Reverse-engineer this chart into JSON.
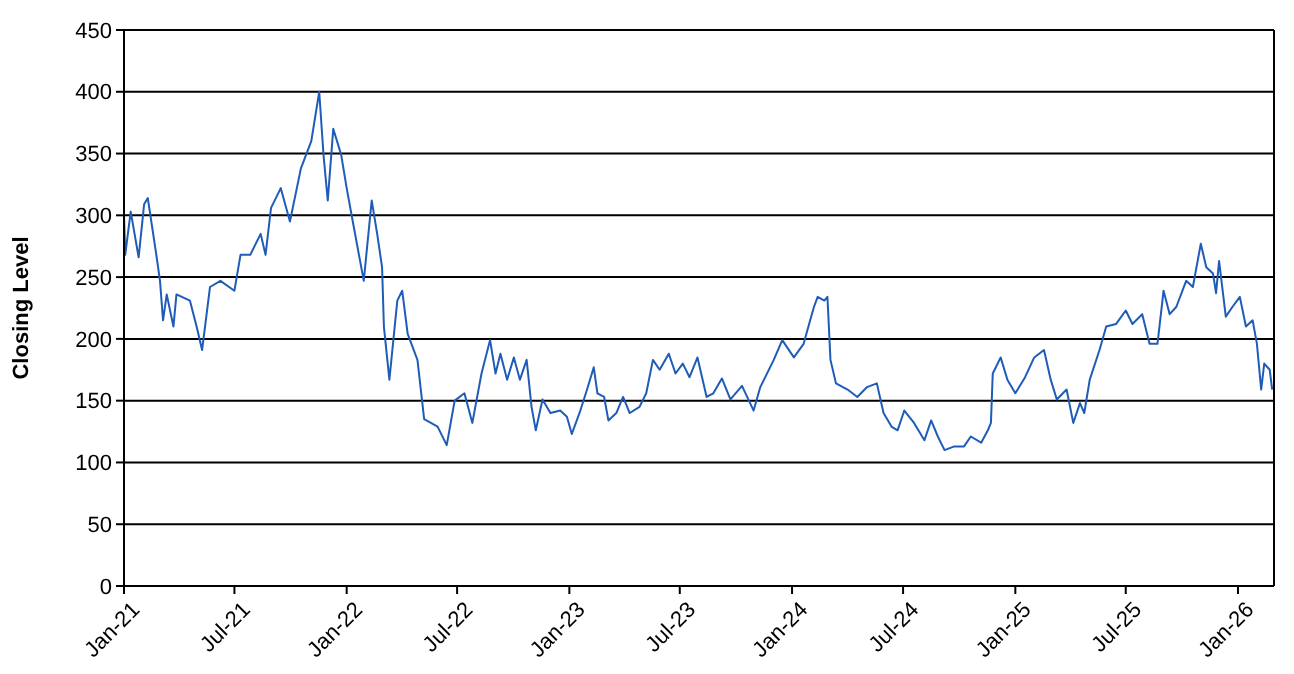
{
  "chart_data": {
    "type": "line",
    "ylabel": "Closing Level",
    "ylim": [
      0,
      450
    ],
    "yticks": [
      0,
      50,
      100,
      150,
      200,
      250,
      300,
      350,
      400,
      450
    ],
    "grid": "y",
    "marker": "none",
    "line_style": "solid",
    "xlim": [
      "2021-01-01",
      "2026-03-01"
    ],
    "xticks": [
      {
        "value": "2021-01-01",
        "label": "Jan-21"
      },
      {
        "value": "2021-07-01",
        "label": "Jul-21"
      },
      {
        "value": "2022-01-01",
        "label": "Jan-22"
      },
      {
        "value": "2022-07-01",
        "label": "Jul-22"
      },
      {
        "value": "2023-01-01",
        "label": "Jan-23"
      },
      {
        "value": "2023-07-01",
        "label": "Jul-23"
      },
      {
        "value": "2024-01-01",
        "label": "Jan-24"
      },
      {
        "value": "2024-07-01",
        "label": "Jul-24"
      },
      {
        "value": "2025-01-01",
        "label": "Jan-25"
      },
      {
        "value": "2025-07-01",
        "label": "Jul-25"
      },
      {
        "value": "2026-01-01",
        "label": "Jan-26"
      }
    ],
    "x": [
      "2021-01-01",
      "2021-01-03",
      "2021-01-12",
      "2021-01-25",
      "2021-02-03",
      "2021-02-09",
      "2021-02-23",
      "2021-03-01",
      "2021-03-06",
      "2021-03-12",
      "2021-03-23",
      "2021-03-28",
      "2021-04-19",
      "2021-04-30",
      "2021-05-09",
      "2021-05-22",
      "2021-06-08",
      "2021-07-01",
      "2021-07-11",
      "2021-07-27",
      "2021-08-13",
      "2021-08-21",
      "2021-08-30",
      "2021-09-15",
      "2021-09-30",
      "2021-10-18",
      "2021-11-04",
      "2021-11-17",
      "2021-11-24",
      "2021-12-01",
      "2021-12-10",
      "2021-12-23",
      "2022-01-01",
      "2022-01-11",
      "2022-01-29",
      "2022-02-11",
      "2022-02-20",
      "2022-02-28",
      "2022-03-03",
      "2022-03-12",
      "2022-03-25",
      "2022-04-02",
      "2022-04-11",
      "2022-04-27",
      "2022-05-08",
      "2022-05-30",
      "2022-06-14",
      "2022-06-27",
      "2022-07-13",
      "2022-07-26",
      "2022-08-10",
      "2022-08-24",
      "2022-09-02",
      "2022-09-10",
      "2022-09-21",
      "2022-10-02",
      "2022-10-12",
      "2022-10-23",
      "2022-10-31",
      "2022-11-07",
      "2022-11-18",
      "2022-12-01",
      "2022-12-17",
      "2022-12-28",
      "2023-01-05",
      "2023-01-19",
      "2023-01-30",
      "2023-02-10",
      "2023-02-16",
      "2023-02-27",
      "2023-03-06",
      "2023-03-19",
      "2023-03-30",
      "2023-04-10",
      "2023-04-26",
      "2023-05-07",
      "2023-05-18",
      "2023-05-29",
      "2023-06-13",
      "2023-06-24",
      "2023-07-06",
      "2023-07-17",
      "2023-07-30",
      "2023-08-14",
      "2023-08-25",
      "2023-09-08",
      "2023-09-22",
      "2023-10-11",
      "2023-10-30",
      "2023-11-10",
      "2023-12-02",
      "2023-12-16",
      "2024-01-04",
      "2024-01-20",
      "2024-01-29",
      "2024-02-06",
      "2024-02-12",
      "2024-02-23",
      "2024-02-28",
      "2024-03-04",
      "2024-03-13",
      "2024-04-01",
      "2024-04-17",
      "2024-05-03",
      "2024-05-19",
      "2024-05-30",
      "2024-06-12",
      "2024-06-22",
      "2024-07-03",
      "2024-07-19",
      "2024-08-05",
      "2024-08-16",
      "2024-08-27",
      "2024-09-07",
      "2024-09-23",
      "2024-10-09",
      "2024-10-20",
      "2024-11-06",
      "2024-11-17",
      "2024-11-22",
      "2024-11-25",
      "2024-12-08",
      "2024-12-19",
      "2025-01-01",
      "2025-01-17",
      "2025-02-01",
      "2025-02-17",
      "2025-02-28",
      "2025-03-10",
      "2025-03-26",
      "2025-04-06",
      "2025-04-17",
      "2025-04-24",
      "2025-05-03",
      "2025-05-19",
      "2025-05-30",
      "2025-06-15",
      "2025-07-01",
      "2025-07-12",
      "2025-07-28",
      "2025-08-09",
      "2025-08-22",
      "2025-09-01",
      "2025-09-11",
      "2025-09-22",
      "2025-10-08",
      "2025-10-19",
      "2025-11-01",
      "2025-11-10",
      "2025-11-21",
      "2025-11-26",
      "2025-12-01",
      "2025-12-12",
      "2025-12-23",
      "2026-01-04",
      "2026-01-14",
      "2026-01-25",
      "2026-02-01",
      "2026-02-08",
      "2026-02-13",
      "2026-02-22",
      "2026-02-26"
    ],
    "series": [
      {
        "color": "#1f5cb8",
        "values": [
          300,
          268,
          303,
          266,
          309,
          314,
          268,
          247,
          215,
          236,
          210,
          236,
          231,
          210,
          191,
          242,
          247,
          239,
          268,
          268,
          285,
          268,
          306,
          322,
          295,
          338,
          360,
          400,
          349,
          312,
          370,
          349,
          322,
          295,
          247,
          312,
          285,
          258,
          210,
          167,
          231,
          239,
          204,
          183,
          135,
          129,
          114,
          150,
          156,
          132,
          172,
          199,
          172,
          188,
          167,
          185,
          167,
          183,
          145,
          126,
          151,
          140,
          142,
          137,
          123,
          142,
          159,
          177,
          156,
          153,
          134,
          140,
          153,
          140,
          145,
          156,
          183,
          175,
          188,
          172,
          180,
          169,
          185,
          153,
          156,
          168,
          151,
          162,
          142,
          161,
          183,
          199,
          185,
          196,
          212,
          226,
          234,
          231,
          234,
          183,
          164,
          159,
          153,
          161,
          164,
          140,
          129,
          126,
          142,
          132,
          118,
          134,
          121,
          110,
          113,
          113,
          121,
          116,
          126,
          132,
          172,
          185,
          167,
          156,
          169,
          185,
          191,
          167,
          151,
          159,
          132,
          148,
          140,
          167,
          191,
          210,
          212,
          223,
          212,
          220,
          196,
          196,
          239,
          220,
          226,
          247,
          242,
          277,
          258,
          253,
          237,
          263,
          218,
          226,
          234,
          210,
          215,
          196,
          159,
          180,
          175,
          159
        ]
      }
    ]
  }
}
